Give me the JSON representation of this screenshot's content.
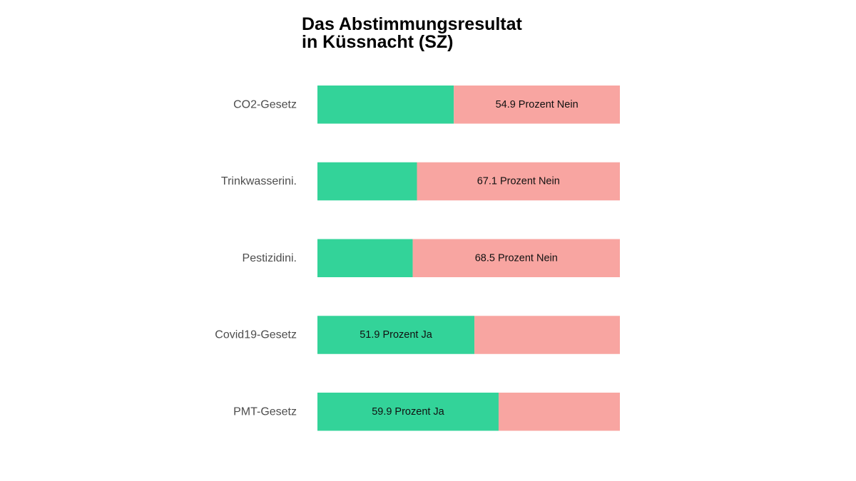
{
  "chart_data": {
    "type": "bar",
    "orientation": "horizontal",
    "stacked": true,
    "title_lines": [
      "Das Abstimmungsresultat",
      "in Küssnacht (SZ)"
    ],
    "categories": [
      "CO2-Gesetz",
      "Trinkwasserini.",
      "Pestizidini.",
      "Covid19-Gesetz",
      "PMT-Gesetz"
    ],
    "series": [
      {
        "key": "ja",
        "values": [
          45.1,
          32.9,
          31.5,
          51.9,
          59.9
        ]
      },
      {
        "key": "nein",
        "values": [
          54.9,
          67.1,
          68.5,
          48.1,
          40.1
        ]
      }
    ],
    "data_labels": [
      {
        "category": "CO2-Gesetz",
        "series": "nein",
        "text": "54.9 Prozent Nein"
      },
      {
        "category": "Trinkwasserini.",
        "series": "nein",
        "text": "67.1 Prozent Nein"
      },
      {
        "category": "Pestizidini.",
        "series": "nein",
        "text": "68.5 Prozent Nein"
      },
      {
        "category": "Covid19-Gesetz",
        "series": "ja",
        "text": "51.9 Prozent Ja"
      },
      {
        "category": "PMT-Gesetz",
        "series": "ja",
        "text": "59.9 Prozent Ja"
      }
    ],
    "xlim": [
      0,
      100
    ],
    "grid": false,
    "legend": "none",
    "colors": {
      "ja": "#33d399",
      "nein": "#f8a5a1"
    }
  }
}
